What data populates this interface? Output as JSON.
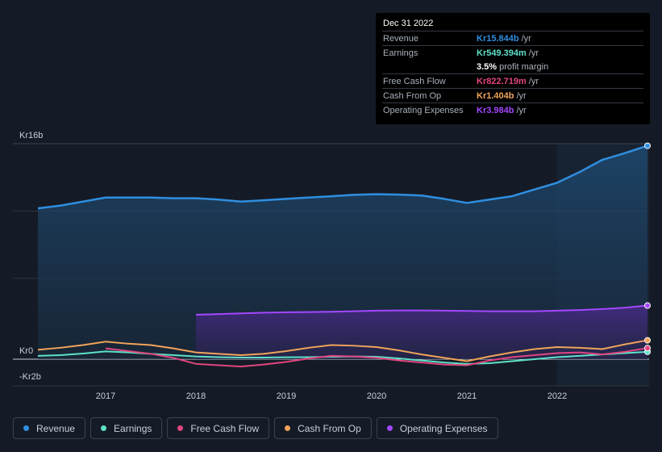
{
  "tooltip": {
    "date": "Dec 31 2022",
    "rows": [
      {
        "label": "Revenue",
        "value": "Kr15.844b",
        "unit": "/yr",
        "color": "#2f8fe0"
      },
      {
        "label": "Earnings",
        "value": "Kr549.394m",
        "unit": "/yr",
        "color": "#5ee0c8"
      },
      {
        "label": "",
        "value": "3.5%",
        "unit": "profit margin",
        "color": "#ffffff"
      },
      {
        "label": "Free Cash Flow",
        "value": "Kr822.719m",
        "unit": "/yr",
        "color": "#e0457f"
      },
      {
        "label": "Cash From Op",
        "value": "Kr1.404b",
        "unit": "/yr",
        "color": "#f0a45a"
      },
      {
        "label": "Operating Expenses",
        "value": "Kr3.984b",
        "unit": "/yr",
        "color": "#a347ff"
      }
    ]
  },
  "legend": [
    {
      "label": "Revenue",
      "color": "#2f8fe0"
    },
    {
      "label": "Earnings",
      "color": "#5ee0c8"
    },
    {
      "label": "Free Cash Flow",
      "color": "#e0457f"
    },
    {
      "label": "Cash From Op",
      "color": "#f0a45a"
    },
    {
      "label": "Operating Expenses",
      "color": "#a347ff"
    }
  ],
  "chart_data": {
    "type": "line",
    "ylabels": {
      "top": "Kr16b",
      "zero": "Kr0",
      "bottom": "-Kr2b"
    },
    "ylim": [
      -2,
      16
    ],
    "xlim": [
      2016.25,
      2023.0
    ],
    "xticks": [
      {
        "label": "2017",
        "value": 2017
      },
      {
        "label": "2018",
        "value": 2018
      },
      {
        "label": "2019",
        "value": 2019
      },
      {
        "label": "2020",
        "value": 2020
      },
      {
        "label": "2021",
        "value": 2021
      },
      {
        "label": "2022",
        "value": 2022
      }
    ],
    "highlight_start": 2022,
    "grid": true,
    "series": [
      {
        "name": "Revenue",
        "color": "#2f8fe0",
        "area": true,
        "points": [
          [
            2016.25,
            11.2
          ],
          [
            2016.5,
            11.4
          ],
          [
            2016.75,
            11.7
          ],
          [
            2017,
            12.0
          ],
          [
            2017.25,
            12.0
          ],
          [
            2017.5,
            12.0
          ],
          [
            2017.75,
            11.95
          ],
          [
            2018,
            11.95
          ],
          [
            2018.25,
            11.85
          ],
          [
            2018.5,
            11.7
          ],
          [
            2018.75,
            11.8
          ],
          [
            2019,
            11.9
          ],
          [
            2019.25,
            12.0
          ],
          [
            2019.5,
            12.1
          ],
          [
            2019.75,
            12.2
          ],
          [
            2020,
            12.25
          ],
          [
            2020.25,
            12.22
          ],
          [
            2020.5,
            12.15
          ],
          [
            2020.75,
            11.9
          ],
          [
            2021,
            11.6
          ],
          [
            2021.25,
            11.85
          ],
          [
            2021.5,
            12.1
          ],
          [
            2021.75,
            12.6
          ],
          [
            2022,
            13.1
          ],
          [
            2022.25,
            13.9
          ],
          [
            2022.5,
            14.8
          ],
          [
            2022.75,
            15.3
          ],
          [
            2023,
            15.844
          ]
        ]
      },
      {
        "name": "Earnings",
        "color": "#5ee0c8",
        "area": false,
        "points": [
          [
            2016.25,
            0.25
          ],
          [
            2016.5,
            0.3
          ],
          [
            2016.75,
            0.42
          ],
          [
            2017,
            0.58
          ],
          [
            2017.25,
            0.5
          ],
          [
            2017.5,
            0.4
          ],
          [
            2017.75,
            0.3
          ],
          [
            2018,
            0.2
          ],
          [
            2018.25,
            0.15
          ],
          [
            2018.5,
            0.12
          ],
          [
            2018.75,
            0.12
          ],
          [
            2019,
            0.14
          ],
          [
            2019.25,
            0.15
          ],
          [
            2019.5,
            0.18
          ],
          [
            2019.75,
            0.2
          ],
          [
            2020,
            0.18
          ],
          [
            2020.25,
            0.05
          ],
          [
            2020.5,
            -0.1
          ],
          [
            2020.75,
            -0.25
          ],
          [
            2021,
            -0.35
          ],
          [
            2021.25,
            -0.3
          ],
          [
            2021.5,
            -0.15
          ],
          [
            2021.75,
            0.0
          ],
          [
            2022,
            0.15
          ],
          [
            2022.25,
            0.25
          ],
          [
            2022.5,
            0.35
          ],
          [
            2022.75,
            0.45
          ],
          [
            2023,
            0.549
          ]
        ]
      },
      {
        "name": "Free Cash Flow",
        "color": "#e0457f",
        "area": false,
        "points": [
          [
            2017,
            0.8
          ],
          [
            2017.25,
            0.6
          ],
          [
            2017.5,
            0.4
          ],
          [
            2017.75,
            0.1
          ],
          [
            2018,
            -0.35
          ],
          [
            2018.25,
            -0.45
          ],
          [
            2018.5,
            -0.55
          ],
          [
            2018.75,
            -0.4
          ],
          [
            2019,
            -0.2
          ],
          [
            2019.25,
            0.05
          ],
          [
            2019.5,
            0.25
          ],
          [
            2019.75,
            0.2
          ],
          [
            2020,
            0.1
          ],
          [
            2020.25,
            -0.1
          ],
          [
            2020.5,
            -0.25
          ],
          [
            2020.75,
            -0.4
          ],
          [
            2021,
            -0.45
          ],
          [
            2021.25,
            -0.1
          ],
          [
            2021.5,
            0.15
          ],
          [
            2021.75,
            0.3
          ],
          [
            2022,
            0.45
          ],
          [
            2022.25,
            0.5
          ],
          [
            2022.5,
            0.35
          ],
          [
            2022.75,
            0.55
          ],
          [
            2023,
            0.823
          ]
        ]
      },
      {
        "name": "Cash From Op",
        "color": "#f0a45a",
        "area": false,
        "points": [
          [
            2016.25,
            0.7
          ],
          [
            2016.5,
            0.85
          ],
          [
            2016.75,
            1.05
          ],
          [
            2017,
            1.3
          ],
          [
            2017.25,
            1.15
          ],
          [
            2017.5,
            1.05
          ],
          [
            2017.75,
            0.8
          ],
          [
            2018,
            0.5
          ],
          [
            2018.25,
            0.4
          ],
          [
            2018.5,
            0.3
          ],
          [
            2018.75,
            0.4
          ],
          [
            2019,
            0.6
          ],
          [
            2019.25,
            0.85
          ],
          [
            2019.5,
            1.05
          ],
          [
            2019.75,
            1.0
          ],
          [
            2020,
            0.9
          ],
          [
            2020.25,
            0.65
          ],
          [
            2020.5,
            0.35
          ],
          [
            2020.75,
            0.1
          ],
          [
            2021,
            -0.15
          ],
          [
            2021.25,
            0.2
          ],
          [
            2021.5,
            0.5
          ],
          [
            2021.75,
            0.75
          ],
          [
            2022,
            0.9
          ],
          [
            2022.25,
            0.85
          ],
          [
            2022.5,
            0.75
          ],
          [
            2022.75,
            1.1
          ],
          [
            2023,
            1.404
          ]
        ]
      },
      {
        "name": "Operating Expenses",
        "color": "#a347ff",
        "area": true,
        "points": [
          [
            2018,
            3.3
          ],
          [
            2018.25,
            3.35
          ],
          [
            2018.5,
            3.4
          ],
          [
            2018.75,
            3.45
          ],
          [
            2019,
            3.48
          ],
          [
            2019.25,
            3.5
          ],
          [
            2019.5,
            3.52
          ],
          [
            2019.75,
            3.56
          ],
          [
            2020,
            3.6
          ],
          [
            2020.25,
            3.62
          ],
          [
            2020.5,
            3.62
          ],
          [
            2020.75,
            3.6
          ],
          [
            2021,
            3.58
          ],
          [
            2021.25,
            3.56
          ],
          [
            2021.5,
            3.56
          ],
          [
            2021.75,
            3.56
          ],
          [
            2022,
            3.6
          ],
          [
            2022.25,
            3.65
          ],
          [
            2022.5,
            3.72
          ],
          [
            2022.75,
            3.82
          ],
          [
            2023,
            3.984
          ]
        ]
      }
    ]
  }
}
